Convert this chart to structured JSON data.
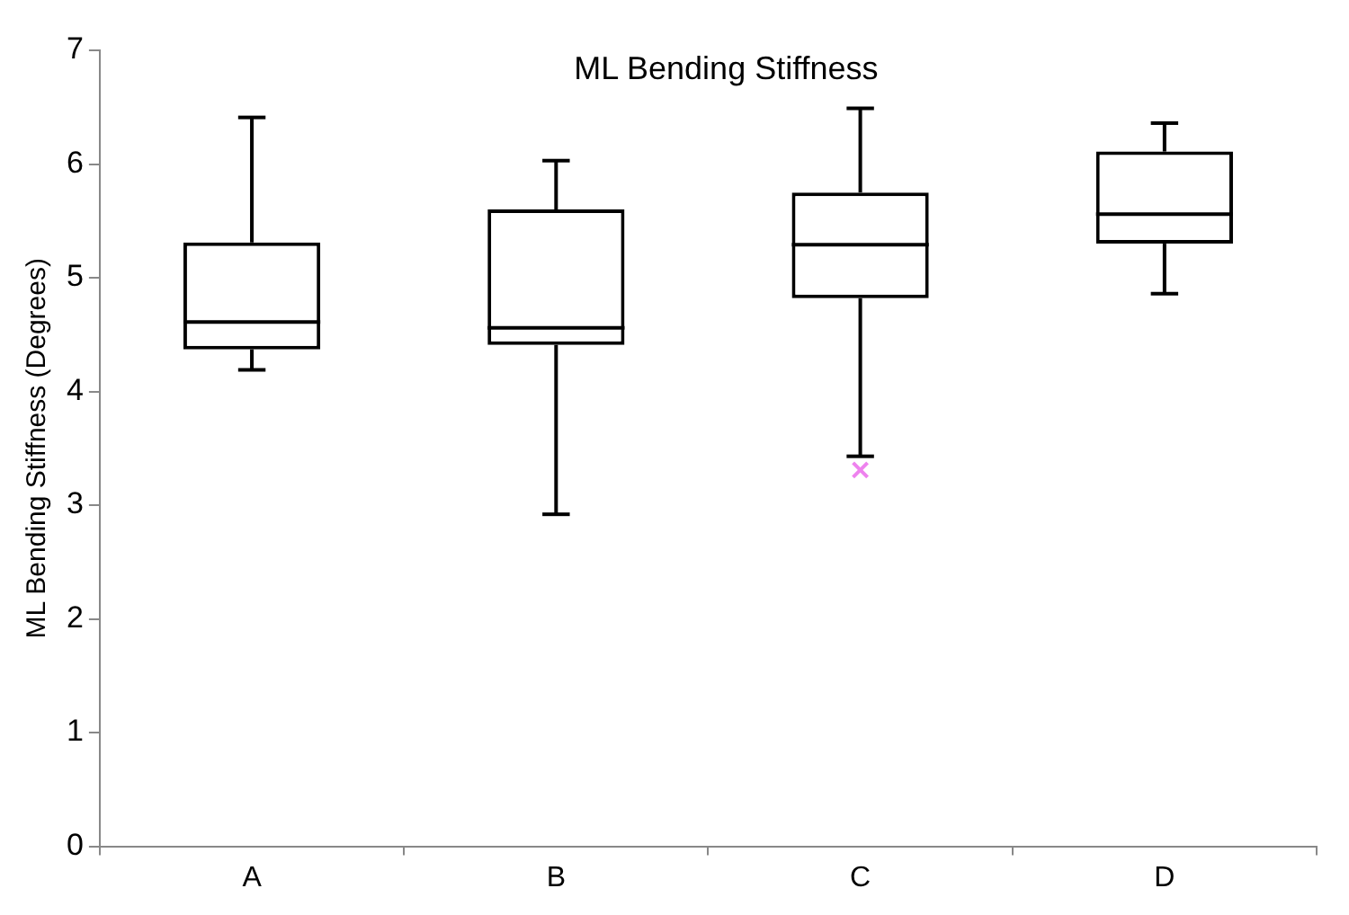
{
  "chart_data": {
    "type": "box",
    "title": "ML Bending Stiffness",
    "ylabel": "ML Bending Stiffness (Degrees)",
    "categories": [
      "A",
      "B",
      "C",
      "D"
    ],
    "boxes": [
      {
        "low": 4.19,
        "q1": 4.37,
        "median": 4.61,
        "q3": 5.31,
        "high": 6.41
      },
      {
        "low": 2.92,
        "q1": 4.41,
        "median": 4.56,
        "q3": 5.6,
        "high": 6.03
      },
      {
        "low": 3.43,
        "q1": 4.82,
        "median": 5.29,
        "q3": 5.75,
        "high": 6.49,
        "outliers": [
          3.31
        ]
      },
      {
        "low": 4.86,
        "q1": 5.3,
        "median": 5.56,
        "q3": 6.11,
        "high": 6.36
      }
    ],
    "color": "#000000",
    "ylim": [
      0,
      7
    ],
    "yticks": [
      0,
      1,
      2,
      3,
      4,
      5,
      6,
      7
    ],
    "grid": false,
    "legend": false,
    "marker": "cross"
  }
}
